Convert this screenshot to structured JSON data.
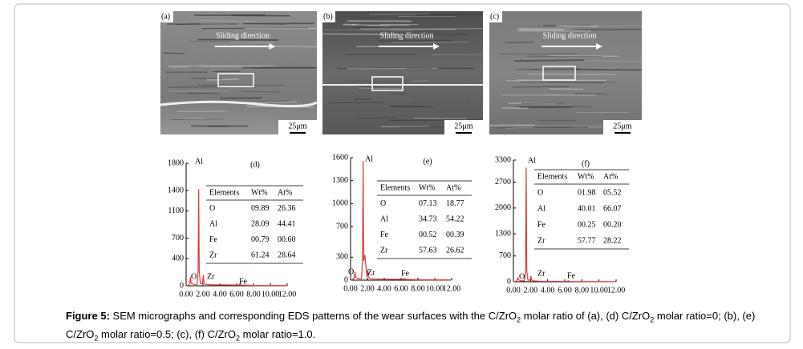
{
  "sem_panels": [
    {
      "label": "(a)",
      "direction": "Sliding direction",
      "scale": "25μm"
    },
    {
      "label": "(b)",
      "direction": "Sliding direction",
      "scale": "25μm"
    },
    {
      "label": "(c)",
      "direction": "Sliding direction",
      "scale": "25μm"
    }
  ],
  "chart_data": [
    {
      "type": "line",
      "title": "(d)",
      "x": [
        0,
        0.3,
        0.45,
        0.52,
        0.6,
        0.9,
        1.3,
        1.42,
        1.49,
        1.56,
        1.7,
        1.95,
        2.04,
        2.12,
        2.3,
        3,
        6.3,
        6.4,
        6.5,
        8,
        12
      ],
      "series": [
        {
          "color": "#e03c3c",
          "values": [
            0,
            10,
            40,
            130,
            40,
            20,
            20,
            200,
            1420,
            200,
            30,
            40,
            160,
            40,
            20,
            15,
            10,
            30,
            10,
            5,
            3
          ]
        }
      ],
      "xlim": [
        0,
        12
      ],
      "xticks": [
        {
          "value": 0,
          "label": "0.00"
        },
        {
          "value": 2,
          "label": "2.00"
        },
        {
          "value": 4,
          "label": "4.00"
        },
        {
          "value": 6,
          "label": "6.00"
        },
        {
          "value": 8,
          "label": "8.00"
        },
        {
          "value": 10,
          "label": "10.00"
        },
        {
          "value": 12,
          "label": "12.00"
        }
      ],
      "ylim": [
        0,
        1800
      ],
      "yticks": [
        0,
        400,
        700,
        1100,
        1400,
        1800
      ],
      "annotations": [
        "Al",
        "O",
        "Zr",
        "Fe"
      ],
      "table": {
        "header": [
          "Elements",
          "Wt%",
          "At%"
        ],
        "rows": [
          [
            "O",
            "09.89",
            "26.36"
          ],
          [
            "Al",
            "28.09",
            "44.41"
          ],
          [
            "Fe",
            "00.79",
            "00.60"
          ],
          [
            "Zr",
            "61.24",
            "28.64"
          ]
        ]
      }
    },
    {
      "type": "line",
      "title": "(e)",
      "x": [
        0,
        0.3,
        0.45,
        0.52,
        0.6,
        0.9,
        1.3,
        1.42,
        1.49,
        1.56,
        1.7,
        1.95,
        2.04,
        2.12,
        2.3,
        3,
        6.3,
        6.4,
        6.5,
        8,
        12
      ],
      "series": [
        {
          "color": "#e03c3c",
          "values": [
            0,
            10,
            40,
            110,
            40,
            20,
            20,
            250,
            1560,
            250,
            330,
            40,
            140,
            40,
            20,
            15,
            10,
            25,
            10,
            5,
            3
          ]
        }
      ],
      "xlim": [
        0,
        12
      ],
      "xticks": [
        {
          "value": 0,
          "label": "0.00"
        },
        {
          "value": 2,
          "label": "2.00"
        },
        {
          "value": 4,
          "label": "4.00"
        },
        {
          "value": 6,
          "label": "6.00"
        },
        {
          "value": 8,
          "label": "8.00"
        },
        {
          "value": 10,
          "label": "10.00"
        },
        {
          "value": 12,
          "label": "12.00"
        }
      ],
      "ylim": [
        0,
        1600
      ],
      "yticks": [
        0,
        300,
        700,
        1000,
        1300,
        1600
      ],
      "annotations": [
        "Al",
        "O",
        "Zr",
        "Fe"
      ],
      "table": {
        "header": [
          "Elements",
          "Wt%",
          "At%"
        ],
        "rows": [
          [
            "O",
            "07.13",
            "18.77"
          ],
          [
            "Al",
            "34.73",
            "54.22"
          ],
          [
            "Fe",
            "00.52",
            "00.39"
          ],
          [
            "Zr",
            "57.63",
            "26.62"
          ]
        ]
      }
    },
    {
      "type": "line",
      "title": "(f)",
      "x": [
        0,
        0.3,
        0.45,
        0.52,
        0.6,
        0.9,
        1.3,
        1.42,
        1.49,
        1.56,
        1.7,
        1.95,
        2.04,
        2.12,
        2.3,
        3,
        6.3,
        6.4,
        6.5,
        8,
        12
      ],
      "series": [
        {
          "color": "#e03c3c",
          "values": [
            0,
            15,
            50,
            120,
            50,
            25,
            25,
            300,
            3100,
            300,
            40,
            50,
            150,
            50,
            25,
            15,
            10,
            30,
            10,
            5,
            3
          ]
        }
      ],
      "xlim": [
        0,
        12
      ],
      "xticks": [
        {
          "value": 0,
          "label": "0.00"
        },
        {
          "value": 2,
          "label": "2.00"
        },
        {
          "value": 4,
          "label": "4.00"
        },
        {
          "value": 6,
          "label": "6.00"
        },
        {
          "value": 8,
          "label": "8.00"
        },
        {
          "value": 10,
          "label": "10.00"
        },
        {
          "value": 12,
          "label": "12.00"
        }
      ],
      "ylim": [
        0,
        3300
      ],
      "yticks": [
        0,
        700,
        1300,
        2000,
        2700,
        3300
      ],
      "annotations": [
        "Al",
        "O",
        "Zr",
        "Fe"
      ],
      "table": {
        "header": [
          "Elements",
          "Wt%",
          "At%"
        ],
        "rows": [
          [
            "O",
            "01.98",
            "05.52"
          ],
          [
            "Al",
            "40.01",
            "66.07"
          ],
          [
            "Fe",
            "00.25",
            "00.20"
          ],
          [
            "Zr",
            "57.77",
            "28.22"
          ]
        ]
      }
    }
  ],
  "caption": {
    "label": "Figure 5:",
    "parts": [
      " SEM micrographs and corresponding EDS patterns of the wear surfaces with the C/ZrO",
      "2",
      " molar ratio of (a), (d) C/ZrO",
      "2",
      " molar ratio=0; (b), (e) C/ZrO",
      "2",
      " molar ratio=0.5; (c), (f) C/ZrO",
      "2",
      " molar ratio=1.0."
    ]
  }
}
